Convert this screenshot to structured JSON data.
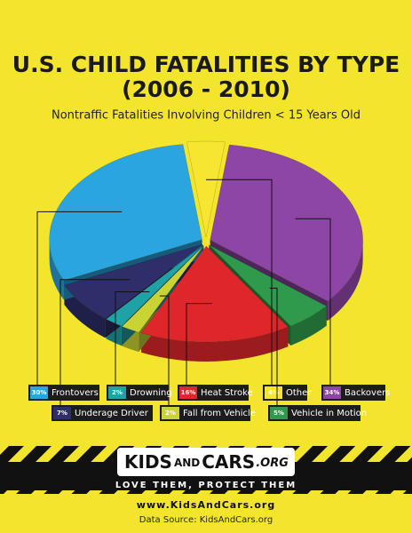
{
  "chart_data": {
    "type": "pie",
    "title": [
      "U.S. CHILD FATALITIES BY TYPE",
      "(2006 - 2010)"
    ],
    "subtitle": "Nontraffic Fatalities Involving Children < 15 Years Old",
    "categories": [
      "Other",
      "Backovers",
      "Vehicle in Motion",
      "Heat Stroke",
      "Fall from Vehicle",
      "Drowning",
      "Underage Driver",
      "Frontovers"
    ],
    "values": [
      4,
      34,
      5,
      16,
      2,
      2,
      7,
      30
    ],
    "value_labels": [
      "4%",
      "34%",
      "5%",
      "16%",
      "2%",
      "2%",
      "7%",
      "30%"
    ],
    "colors": [
      "#f6e531",
      "#8d45a6",
      "#2f9a4b",
      "#df262b",
      "#c9d434",
      "#1fa2a6",
      "#2d2e6a",
      "#2aa5df"
    ]
  },
  "footer": {
    "logo": [
      "KIDS",
      "AND",
      "CARS",
      ".ORG"
    ],
    "tagline": "LOVE THEM, PROTECT THEM",
    "url": "www.KidsAndCars.org",
    "source": "Data Source: KidsAndCars.org"
  }
}
